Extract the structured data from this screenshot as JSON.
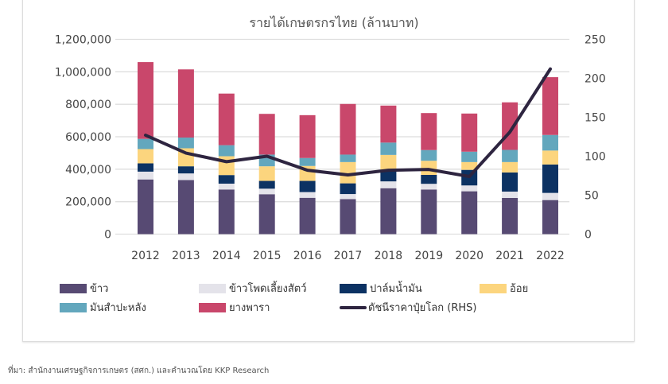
{
  "chart_data": {
    "type": "bar",
    "title": "รายได้เกษตรกรไทย (ล้านบาท)",
    "categories": [
      "2012",
      "2013",
      "2014",
      "2015",
      "2016",
      "2017",
      "2018",
      "2019",
      "2020",
      "2021",
      "2022"
    ],
    "stacked": true,
    "y_left": {
      "ticks": [
        "0",
        "200,000",
        "400,000",
        "600,000",
        "800,000",
        "1,000,000",
        "1,200,000"
      ],
      "range": [
        0,
        1200000
      ]
    },
    "y_right": {
      "ticks": [
        "0",
        "50",
        "100",
        "150",
        "200",
        "250"
      ],
      "range": [
        0,
        250
      ]
    },
    "grid": true,
    "legend_position": "bottom",
    "series": [
      {
        "name": "ข้าว",
        "color": "#574a73",
        "values": [
          337000,
          333000,
          275000,
          246000,
          224000,
          216000,
          283000,
          275000,
          264000,
          223000,
          210000
        ]
      },
      {
        "name": "ข้าวโพดเลี้ยงสัตว์",
        "color": "#e4e3ea",
        "values": [
          48000,
          41000,
          36000,
          34000,
          35000,
          31000,
          42000,
          35000,
          36000,
          39000,
          44000
        ]
      },
      {
        "name": "ปาล์มน้ำมัน",
        "color": "#0c3263",
        "values": [
          51000,
          44000,
          53000,
          48000,
          69000,
          66000,
          70000,
          55000,
          96000,
          118000,
          175000
        ]
      },
      {
        "name": "อ้อย",
        "color": "#fcd57e",
        "values": [
          88000,
          111000,
          116000,
          90000,
          92000,
          131000,
          93000,
          87000,
          48000,
          64000,
          86000
        ]
      },
      {
        "name": "มันสำปะหลัง",
        "color": "#63a7bd",
        "values": [
          63000,
          66000,
          68000,
          72000,
          49000,
          46000,
          76000,
          66000,
          64000,
          75000,
          96000
        ]
      },
      {
        "name": "ยางพารา",
        "color": "#c9476b",
        "values": [
          473000,
          420000,
          318000,
          251000,
          264000,
          312000,
          228000,
          228000,
          235000,
          293000,
          356000
        ]
      }
    ],
    "line_series": {
      "name": "ดัชนีราคาปุ๋ยโลก (RHS)",
      "color": "#2e2540",
      "axis": "right",
      "values": [
        127,
        104,
        93,
        100,
        82,
        76,
        82,
        83,
        74,
        131,
        212
      ]
    }
  },
  "footer": "ที่มา: สำนักงานเศรษฐกิจการเกษตร (สศก.) และคำนวณโดย KKP Research"
}
